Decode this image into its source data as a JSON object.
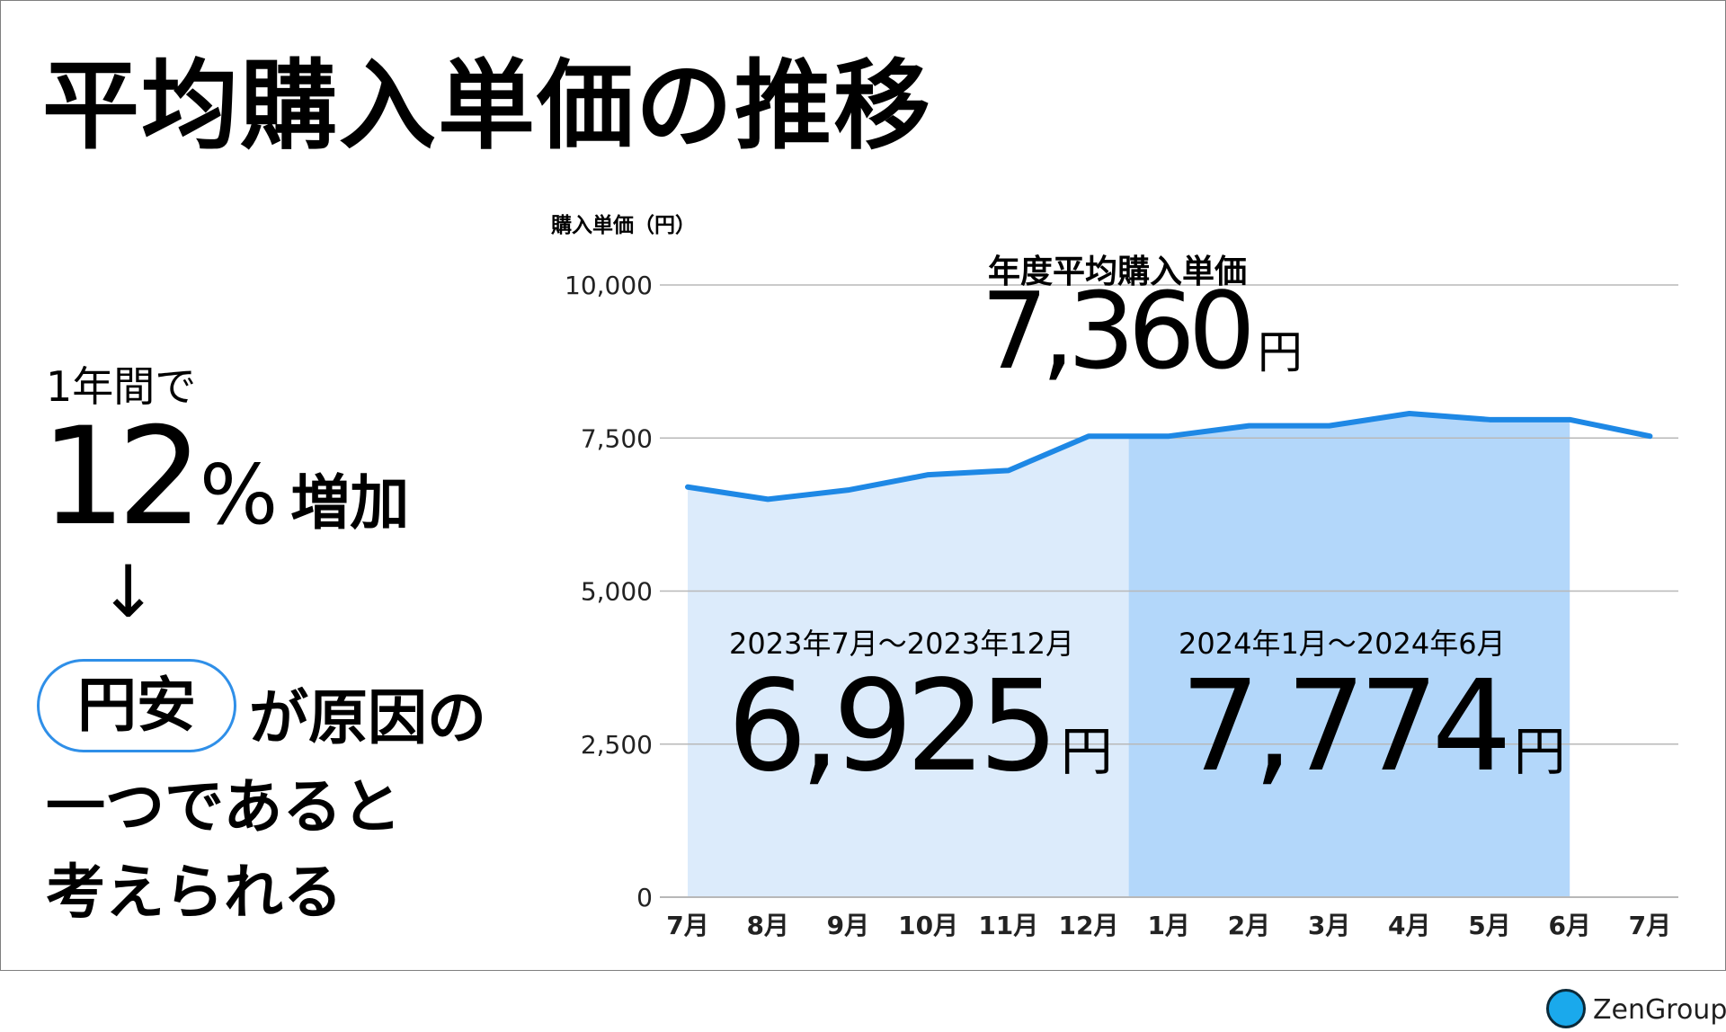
{
  "title": "平均購入単価の推移",
  "left_panel": {
    "intro": "1年間で",
    "percent_value": "12",
    "percent_sign": "%",
    "percent_word": "増加",
    "arrow": "↓",
    "cause_highlight": "円安",
    "cause_rest": "が原因の",
    "line2": "一つであると",
    "line3": "考えられる"
  },
  "annual": {
    "label": "年度平均購入単価",
    "value": "7,360",
    "unit": "円"
  },
  "periods": [
    {
      "label": "2023年7月～2023年12月",
      "value": "6,925",
      "unit": "円"
    },
    {
      "label": "2024年1月～2024年6月",
      "value": "7,774",
      "unit": "円"
    }
  ],
  "logo": {
    "text": "ZenGroup"
  },
  "chart_data": {
    "type": "line",
    "ylabel": "購入単価（円）",
    "xlabel": "",
    "ylim": [
      0,
      10000
    ],
    "y_ticks": [
      0,
      2500,
      5000,
      7500,
      10000
    ],
    "y_tick_labels": [
      "0",
      "2,500",
      "5,000",
      "7,500",
      "10,000"
    ],
    "categories": [
      "7月",
      "8月",
      "9月",
      "10月",
      "11月",
      "12月",
      "1月",
      "2月",
      "3月",
      "4月",
      "5月",
      "6月",
      "7月"
    ],
    "series": [
      {
        "values": [
          6700,
          6500,
          6650,
          6900,
          6970,
          7530,
          7530,
          7700,
          7700,
          7900,
          7800,
          7800,
          7530
        ]
      }
    ],
    "shaded_periods": [
      {
        "start_index": 0,
        "end_index": 5.5
      },
      {
        "start_index": 5.5,
        "end_index": 11
      }
    ],
    "grid": true,
    "colors": {
      "line": "#1e88e5",
      "period1": "#dcebfb",
      "period2": "#b3d7fa",
      "grid": "#b8b8b8"
    }
  }
}
